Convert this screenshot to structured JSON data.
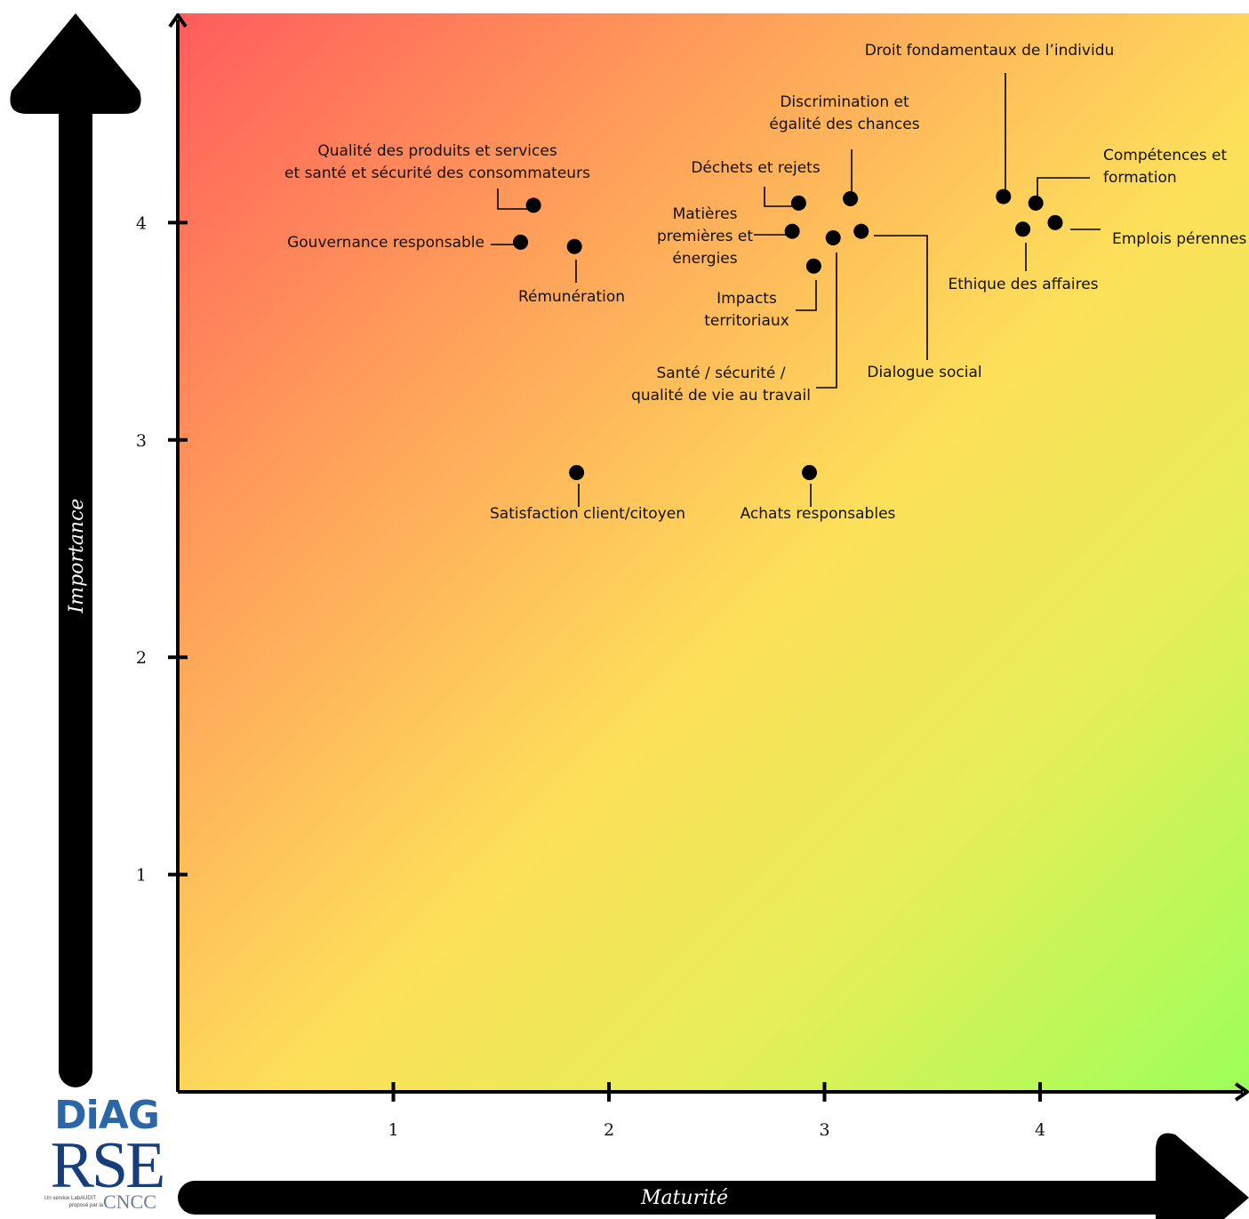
{
  "chart_data": {
    "type": "scatter",
    "xlabel": "Maturité",
    "ylabel": "Importance",
    "xlim": [
      0,
      4.95
    ],
    "ylim": [
      0,
      4.95
    ],
    "x_ticks": [
      "1",
      "2",
      "3",
      "4"
    ],
    "y_ticks": [
      "1",
      "2",
      "3",
      "4"
    ],
    "background": {
      "high_risk_color": "#ff5c5c",
      "mid_color": "#fde05a",
      "low_risk_color": "#9cff59"
    },
    "points": [
      {
        "label": [
          "Qualité des produits et services",
          "et santé et sécurité des consommateurs"
        ],
        "x": 1.65,
        "y": 4.08
      },
      {
        "label": [
          "Gouvernance responsable"
        ],
        "x": 1.59,
        "y": 3.91
      },
      {
        "label": [
          "Rémunération"
        ],
        "x": 1.84,
        "y": 3.89
      },
      {
        "label": [
          "Satisfaction client/citoyen"
        ],
        "x": 1.85,
        "y": 2.85
      },
      {
        "label": [
          "Déchets et rejets"
        ],
        "x": 2.88,
        "y": 4.09
      },
      {
        "label": [
          "Matières",
          "premières et",
          "énergies"
        ],
        "x": 2.85,
        "y": 3.96
      },
      {
        "label": [
          "Discrimination et",
          "égalité des chances"
        ],
        "x": 3.12,
        "y": 4.11
      },
      {
        "label": [
          "Impacts",
          "territoriaux"
        ],
        "x": 2.95,
        "y": 3.8
      },
      {
        "label": [
          "Santé / sécurité /",
          "qualité de vie au travail"
        ],
        "x": 3.04,
        "y": 3.93
      },
      {
        "label": [
          "Dialogue social"
        ],
        "x": 3.17,
        "y": 3.96
      },
      {
        "label": [
          "Achats responsables"
        ],
        "x": 2.93,
        "y": 2.85
      },
      {
        "label": [
          "Droit fondamentaux de l’individu"
        ],
        "x": 3.83,
        "y": 4.12
      },
      {
        "label": [
          "Compétences et",
          "formation"
        ],
        "x": 3.98,
        "y": 4.09
      },
      {
        "label": [
          "Ethique des affaires"
        ],
        "x": 3.92,
        "y": 3.97
      },
      {
        "label": [
          "Emplois pérennes"
        ],
        "x": 4.07,
        "y": 4.0
      }
    ]
  },
  "logo": {
    "line1": "DiAG",
    "line2": "RSE",
    "tagline": [
      "Un service LabAUDIT",
      "proposé par la"
    ],
    "partner": "CNCC"
  }
}
